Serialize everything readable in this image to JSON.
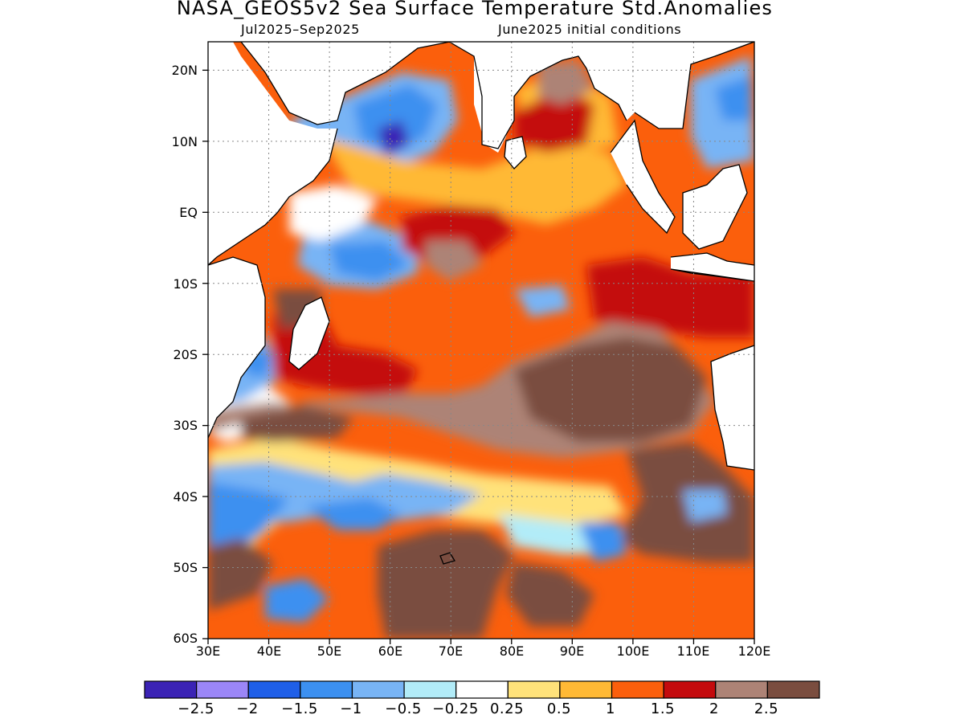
{
  "header": {
    "title": "NASA_GEOS5v2 Sea Surface Temperature Std.Anomalies",
    "period": "Jul2025–Sep2025",
    "initial_conditions": "June2025 initial conditions"
  },
  "map": {
    "lon_range": [
      30,
      120
    ],
    "lat_range": [
      -60,
      24
    ],
    "lat_ticks": [
      "20N",
      "10N",
      "EQ",
      "10S",
      "20S",
      "30S",
      "40S",
      "50S",
      "60S"
    ],
    "lon_ticks": [
      "30E",
      "40E",
      "50E",
      "60E",
      "70E",
      "80E",
      "90E",
      "100E",
      "110E",
      "120E"
    ],
    "grid_lines": true
  },
  "colorbar": {
    "colors": [
      "#3b23b5",
      "#9b86f7",
      "#1f5fe8",
      "#3c90f0",
      "#78b4f5",
      "#b2ecf8",
      "#ffffff",
      "#ffe27a",
      "#ffb935",
      "#fb5f0c",
      "#c40a0d",
      "#ad8376",
      "#7a4d3f"
    ],
    "labels": [
      "−2.5",
      "−2",
      "−1.5",
      "−1",
      "−0.5",
      "−0.25",
      "0.25",
      "0.5",
      "1",
      "1.5",
      "2",
      "2.5"
    ]
  }
}
